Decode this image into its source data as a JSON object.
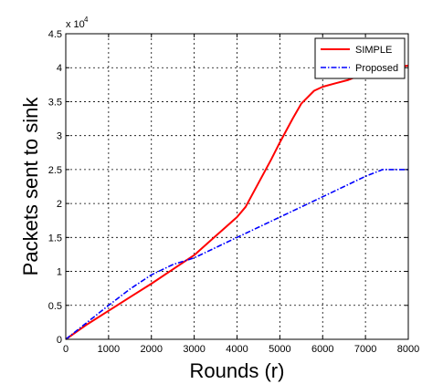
{
  "chart_data": {
    "type": "line",
    "title": "",
    "xlabel": "Rounds (r)",
    "ylabel": "Packets sent to sink",
    "y_multiplier_label": "x 10",
    "y_multiplier_exponent": "4",
    "xlim": [
      0,
      8000
    ],
    "ylim": [
      0,
      4.5
    ],
    "xticks": [
      0,
      1000,
      2000,
      3000,
      4000,
      5000,
      6000,
      7000,
      8000
    ],
    "yticks": [
      0,
      0.5,
      1,
      1.5,
      2,
      2.5,
      3,
      3.5,
      4,
      4.5
    ],
    "xtick_labels": [
      "0",
      "1000",
      "2000",
      "3000",
      "4000",
      "5000",
      "6000",
      "7000",
      "8000"
    ],
    "ytick_labels": [
      "0",
      "0.5",
      "1",
      "1.5",
      "2",
      "2.5",
      "3",
      "3.5",
      "4",
      "4.5"
    ],
    "grid": true,
    "legend_position": "top-right",
    "series": [
      {
        "name": "SIMPLE",
        "color": "#ff0000",
        "style": "solid",
        "x": [
          0,
          500,
          1000,
          1500,
          2000,
          2500,
          3000,
          3500,
          4000,
          4200,
          4500,
          4800,
          5000,
          5300,
          5500,
          5800,
          6000,
          6300,
          6600,
          7000,
          7500,
          8000
        ],
        "y": [
          0,
          0.22,
          0.42,
          0.62,
          0.82,
          1.03,
          1.24,
          1.52,
          1.8,
          1.95,
          2.3,
          2.65,
          2.9,
          3.25,
          3.47,
          3.66,
          3.72,
          3.77,
          3.82,
          3.92,
          4.0,
          4.03
        ]
      },
      {
        "name": "Proposed",
        "color": "#0000ff",
        "style": "dashdot",
        "x": [
          0,
          500,
          1000,
          1500,
          2000,
          2500,
          3000,
          4000,
          5000,
          6000,
          7000,
          7400,
          8000
        ],
        "y": [
          0,
          0.25,
          0.5,
          0.74,
          0.95,
          1.1,
          1.2,
          1.5,
          1.8,
          2.1,
          2.4,
          2.5,
          2.5
        ]
      }
    ]
  }
}
